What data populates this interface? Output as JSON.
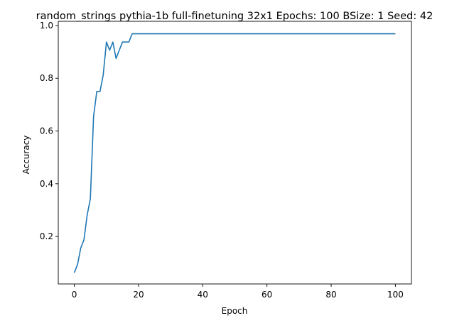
{
  "chart_data": {
    "type": "line",
    "title": "random_strings pythia-1b full-finetuning 32x1 Epochs: 100 BSize: 1 Seed: 42",
    "xlabel": "Epoch",
    "ylabel": "Accuracy",
    "xlim": [
      -5,
      105
    ],
    "ylim": [
      0.02,
      1.016
    ],
    "x_ticks": [
      0,
      20,
      40,
      60,
      80,
      100
    ],
    "y_ticks": [
      0.2,
      0.4,
      0.6,
      0.8,
      1.0
    ],
    "x_tick_labels": [
      "0",
      "20",
      "40",
      "60",
      "80",
      "100"
    ],
    "y_tick_labels": [
      "0.2",
      "0.4",
      "0.6",
      "0.8",
      "1.0"
    ],
    "grid": false,
    "series": [
      {
        "color": "#1f77b4",
        "x": [
          0,
          1,
          2,
          3,
          4,
          5,
          6,
          7,
          8,
          9,
          10,
          11,
          12,
          13,
          14,
          15,
          16,
          17,
          18,
          19,
          20,
          30,
          40,
          50,
          60,
          70,
          80,
          90,
          100
        ],
        "y": [
          0.0625,
          0.09375,
          0.15625,
          0.1875,
          0.28125,
          0.34375,
          0.65625,
          0.75,
          0.75,
          0.8125,
          0.9375,
          0.90625,
          0.9375,
          0.875,
          0.90625,
          0.9375,
          0.9375,
          0.9375,
          0.96875,
          0.96875,
          0.96875,
          0.96875,
          0.96875,
          0.96875,
          0.96875,
          0.96875,
          0.96875,
          0.96875,
          0.96875
        ]
      }
    ]
  }
}
